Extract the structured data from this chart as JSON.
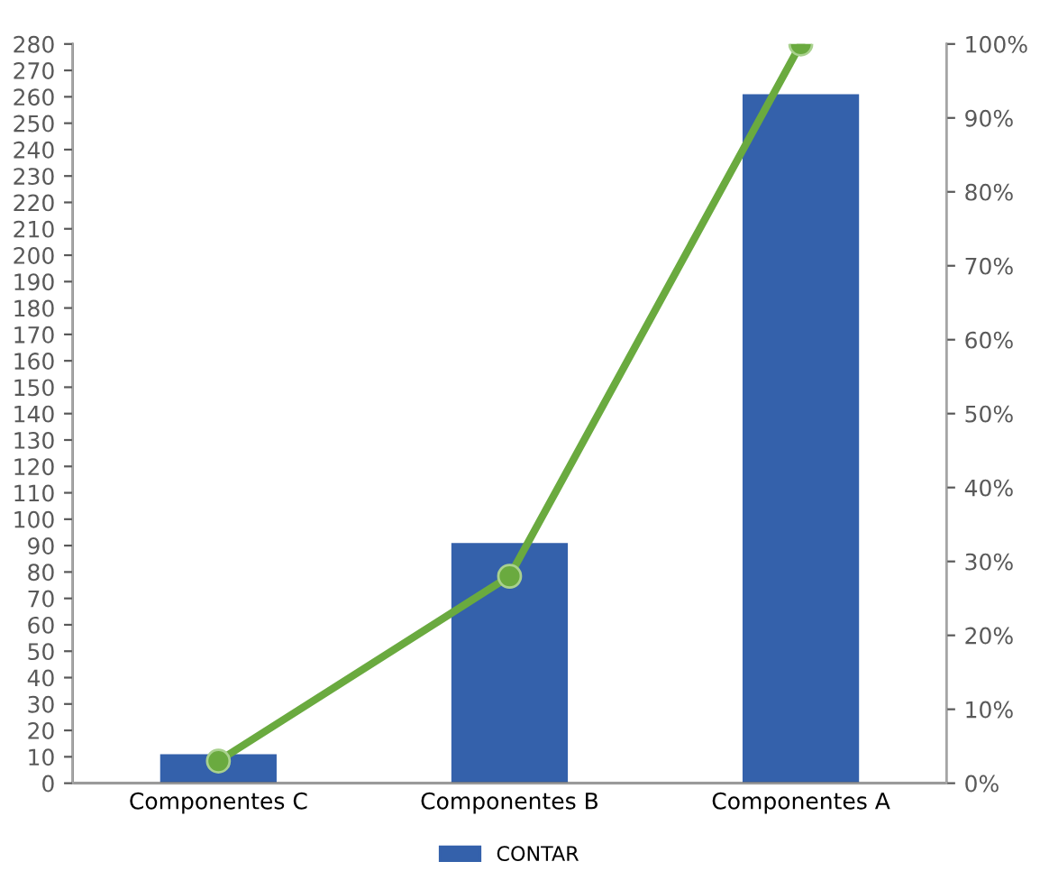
{
  "chart_data": {
    "type": "bar",
    "categories": [
      "Componentes C",
      "Componentes B",
      "Componentes A"
    ],
    "series": [
      {
        "name": "CONTAR",
        "color": "#3461ab",
        "values": [
          11,
          91,
          261
        ]
      },
      {
        "type": "line",
        "axis": "y2",
        "color": "#6aaa3f",
        "values": [
          3,
          28,
          100
        ],
        "marker": "circle"
      }
    ],
    "ylim": [
      0,
      280
    ],
    "yticks": [
      0,
      10,
      20,
      30,
      40,
      50,
      60,
      70,
      80,
      90,
      100,
      110,
      120,
      130,
      140,
      150,
      160,
      170,
      180,
      190,
      200,
      210,
      220,
      230,
      240,
      250,
      260,
      270,
      280
    ],
    "y2lim": [
      0,
      100
    ],
    "y2ticks": [
      {
        "value": 0,
        "label": "0%"
      },
      {
        "value": 10,
        "label": "10%"
      },
      {
        "value": 20,
        "label": "20%"
      },
      {
        "value": 30,
        "label": "30%"
      },
      {
        "value": 40,
        "label": "40%"
      },
      {
        "value": 50,
        "label": "50%"
      },
      {
        "value": 60,
        "label": "60%"
      },
      {
        "value": 70,
        "label": "70%"
      },
      {
        "value": 80,
        "label": "80%"
      },
      {
        "value": 90,
        "label": "90%"
      },
      {
        "value": 100,
        "label": "100%"
      }
    ],
    "legend": "bottom",
    "grid": false
  }
}
